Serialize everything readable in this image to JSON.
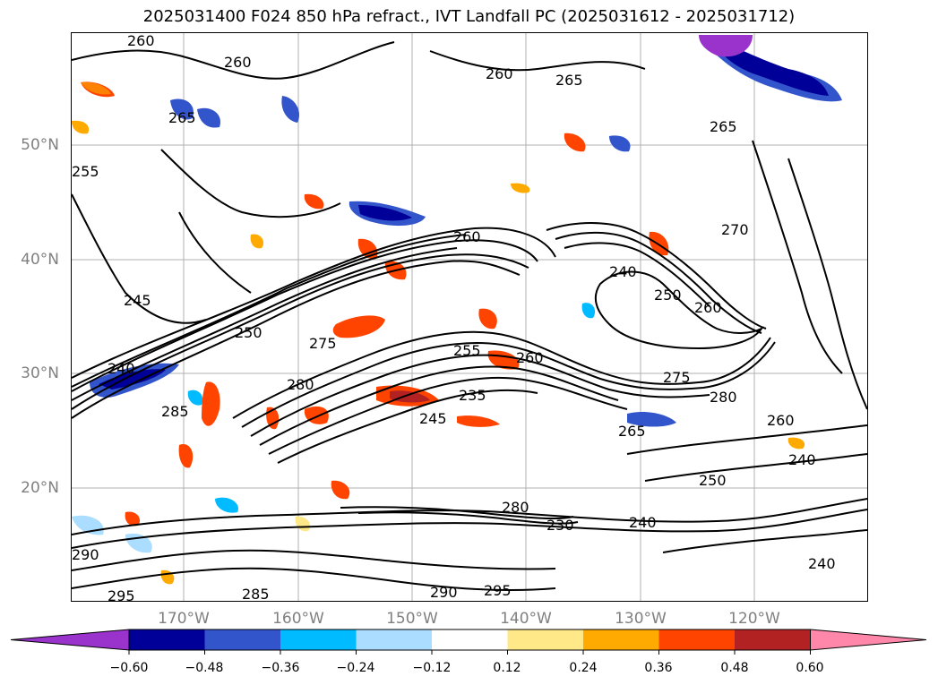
{
  "title": "2025031400 F024 850 hPa refract., IVT Landfall PC (2025031612 - 2025031712)",
  "map": {
    "lat_labels": [
      "50°N",
      "40°N",
      "30°N",
      "20°N"
    ],
    "lon_labels": [
      "170°W",
      "160°W",
      "150°W",
      "140°W",
      "130°W",
      "120°W"
    ],
    "contour_labels": [
      "260",
      "260",
      "265",
      "255",
      "260",
      "265",
      "260",
      "245",
      "250",
      "240",
      "275",
      "280",
      "235",
      "245",
      "255",
      "260",
      "240",
      "250",
      "260",
      "275",
      "280",
      "260",
      "240",
      "265",
      "285",
      "280",
      "230",
      "240",
      "250",
      "290",
      "295",
      "290",
      "295",
      "285",
      "240",
      "270",
      "265"
    ]
  },
  "colorbar": {
    "colors": [
      "#9933cc",
      "#000099",
      "#3355cc",
      "#00bbff",
      "#aaddff",
      "#ffffff",
      "#ffe888",
      "#ffaa00",
      "#ff4400",
      "#b22222",
      "#ff88aa"
    ],
    "ticks": [
      "−0.60",
      "−0.48",
      "−0.36",
      "−0.24",
      "−0.12",
      "0.12",
      "0.24",
      "0.36",
      "0.48",
      "0.60"
    ]
  }
}
